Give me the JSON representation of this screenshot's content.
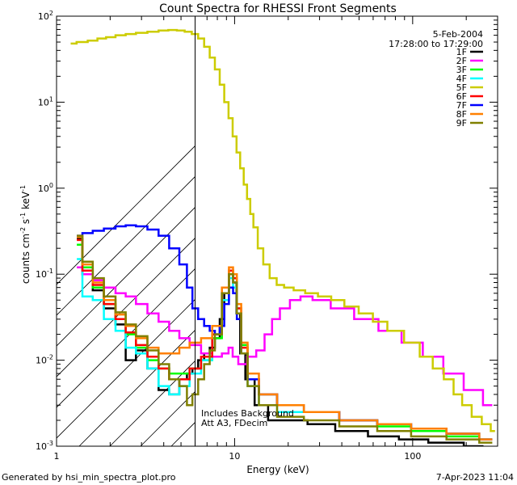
{
  "chart_data": {
    "type": "line",
    "title": "Count Spectra for RHESSI Front Segments",
    "xlabel": "Energy (keV)",
    "ylabel": "counts cm-2 s-1 keV-1",
    "xscale": "log",
    "yscale": "log",
    "xlim": [
      1,
      300
    ],
    "ylim": [
      0.001,
      100
    ],
    "x_ticks": [
      {
        "value": 1,
        "label": "1"
      },
      {
        "value": 10,
        "label": "10"
      },
      {
        "value": 100,
        "label": "100"
      }
    ],
    "y_ticks": [
      {
        "value": 0.001,
        "base": "10",
        "exp": "-3"
      },
      {
        "value": 0.01,
        "base": "10",
        "exp": "-2"
      },
      {
        "value": 0.1,
        "base": "10",
        "exp": "-1"
      },
      {
        "value": 1,
        "base": "10",
        "exp": "0"
      },
      {
        "value": 10,
        "base": "10",
        "exp": "1"
      },
      {
        "value": 100,
        "base": "10",
        "exp": "2"
      }
    ],
    "attenuator_edge_kev": 6,
    "hatched_region_kev": [
      1,
      6
    ],
    "date": "5-Feb-2004",
    "time_range": "17:28:00 to 17:29:00",
    "annotation_lines": [
      "Includes Background",
      "Att A3, FDecim"
    ],
    "series": [
      {
        "name": "1F",
        "color": "#000000",
        "points": [
          [
            1.3,
            0.26
          ],
          [
            1.5,
            0.1
          ],
          [
            1.7,
            0.065
          ],
          [
            2.0,
            0.04
          ],
          [
            2.3,
            0.026
          ],
          [
            2.6,
            0.01
          ],
          [
            3.0,
            0.013
          ],
          [
            3.5,
            0.008
          ],
          [
            4.0,
            0.0045
          ],
          [
            4.6,
            0.004
          ],
          [
            5.2,
            0.006
          ],
          [
            5.6,
            0.007
          ],
          [
            6.0,
            0.008
          ],
          [
            6.5,
            0.01
          ],
          [
            7.0,
            0.012
          ],
          [
            7.5,
            0.014
          ],
          [
            8.0,
            0.018
          ],
          [
            8.5,
            0.03
          ],
          [
            9.0,
            0.06
          ],
          [
            9.6,
            0.1
          ],
          [
            10.0,
            0.08
          ],
          [
            10.5,
            0.035
          ],
          [
            11.0,
            0.012
          ],
          [
            12,
            0.006
          ],
          [
            14,
            0.003
          ],
          [
            17,
            0.002
          ],
          [
            22,
            0.002
          ],
          [
            30,
            0.0018
          ],
          [
            45,
            0.0015
          ],
          [
            70,
            0.0013
          ],
          [
            100,
            0.0012
          ],
          [
            150,
            0.0011
          ],
          [
            250,
            0.001
          ]
        ]
      },
      {
        "name": "2F",
        "color": "#ff00ff",
        "points": [
          [
            1.3,
            0.12
          ],
          [
            1.5,
            0.1
          ],
          [
            1.7,
            0.085
          ],
          [
            2.0,
            0.07
          ],
          [
            2.3,
            0.06
          ],
          [
            2.6,
            0.055
          ],
          [
            3.0,
            0.045
          ],
          [
            3.5,
            0.035
          ],
          [
            4.0,
            0.028
          ],
          [
            4.6,
            0.022
          ],
          [
            5.2,
            0.018
          ],
          [
            6.0,
            0.015
          ],
          [
            7.0,
            0.012
          ],
          [
            8.0,
            0.011
          ],
          [
            9.0,
            0.012
          ],
          [
            9.5,
            0.014
          ],
          [
            10.0,
            0.011
          ],
          [
            11.0,
            0.009
          ],
          [
            12.5,
            0.011
          ],
          [
            14,
            0.013
          ],
          [
            15.5,
            0.02
          ],
          [
            17,
            0.03
          ],
          [
            19,
            0.04
          ],
          [
            22,
            0.05
          ],
          [
            25,
            0.055
          ],
          [
            30,
            0.05
          ],
          [
            40,
            0.04
          ],
          [
            55,
            0.03
          ],
          [
            75,
            0.022
          ],
          [
            100,
            0.016
          ],
          [
            130,
            0.011
          ],
          [
            170,
            0.007
          ],
          [
            220,
            0.0045
          ],
          [
            280,
            0.003
          ]
        ]
      },
      {
        "name": "3F",
        "color": "#00ff00",
        "points": [
          [
            1.3,
            0.22
          ],
          [
            1.5,
            0.12
          ],
          [
            1.7,
            0.07
          ],
          [
            2.0,
            0.045
          ],
          [
            2.3,
            0.03
          ],
          [
            2.6,
            0.02
          ],
          [
            3.0,
            0.014
          ],
          [
            3.5,
            0.01
          ],
          [
            4.0,
            0.008
          ],
          [
            4.6,
            0.007
          ],
          [
            5.2,
            0.007
          ],
          [
            6.0,
            0.008
          ],
          [
            7.0,
            0.01
          ],
          [
            8.0,
            0.018
          ],
          [
            9.0,
            0.06
          ],
          [
            9.6,
            0.11
          ],
          [
            10.0,
            0.09
          ],
          [
            10.6,
            0.04
          ],
          [
            11.2,
            0.015
          ],
          [
            12.5,
            0.006
          ],
          [
            15,
            0.004
          ],
          [
            20,
            0.003
          ],
          [
            30,
            0.0025
          ],
          [
            50,
            0.002
          ],
          [
            80,
            0.0017
          ],
          [
            120,
            0.0015
          ],
          [
            200,
            0.0013
          ],
          [
            280,
            0.0012
          ]
        ]
      },
      {
        "name": "4F",
        "color": "#00ffff",
        "points": [
          [
            1.3,
            0.15
          ],
          [
            1.5,
            0.055
          ],
          [
            1.7,
            0.05
          ],
          [
            2.0,
            0.03
          ],
          [
            2.3,
            0.022
          ],
          [
            2.6,
            0.014
          ],
          [
            3.0,
            0.012
          ],
          [
            3.5,
            0.008
          ],
          [
            4.0,
            0.005
          ],
          [
            4.6,
            0.004
          ],
          [
            5.2,
            0.005
          ],
          [
            6.0,
            0.007
          ],
          [
            7.0,
            0.01
          ],
          [
            8.0,
            0.02
          ],
          [
            9.0,
            0.05
          ],
          [
            9.6,
            0.09
          ],
          [
            10.0,
            0.07
          ],
          [
            10.6,
            0.03
          ],
          [
            11.2,
            0.012
          ],
          [
            12.5,
            0.005
          ],
          [
            15,
            0.003
          ],
          [
            20,
            0.0025
          ],
          [
            30,
            0.0025
          ],
          [
            50,
            0.002
          ],
          [
            80,
            0.0018
          ],
          [
            120,
            0.0016
          ],
          [
            200,
            0.0014
          ],
          [
            280,
            0.0012
          ]
        ]
      },
      {
        "name": "5F",
        "color": "#cccc00",
        "points": [
          [
            1.2,
            48
          ],
          [
            1.4,
            50
          ],
          [
            1.6,
            52
          ],
          [
            1.8,
            55
          ],
          [
            2.0,
            57
          ],
          [
            2.3,
            60
          ],
          [
            2.6,
            62
          ],
          [
            3.0,
            64
          ],
          [
            3.5,
            66
          ],
          [
            4.0,
            68
          ],
          [
            4.5,
            69
          ],
          [
            5.0,
            68
          ],
          [
            5.5,
            66
          ],
          [
            6.0,
            62
          ],
          [
            6.5,
            55
          ],
          [
            7.0,
            44
          ],
          [
            7.5,
            33
          ],
          [
            8.0,
            24
          ],
          [
            8.5,
            16
          ],
          [
            9.0,
            10
          ],
          [
            9.5,
            6.5
          ],
          [
            10.0,
            4
          ],
          [
            10.5,
            2.6
          ],
          [
            11.0,
            1.7
          ],
          [
            11.5,
            1.1
          ],
          [
            12.0,
            0.75
          ],
          [
            12.5,
            0.5
          ],
          [
            13.0,
            0.35
          ],
          [
            14.0,
            0.2
          ],
          [
            15.0,
            0.13
          ],
          [
            16.5,
            0.09
          ],
          [
            18,
            0.075
          ],
          [
            20,
            0.07
          ],
          [
            23,
            0.065
          ],
          [
            27,
            0.06
          ],
          [
            32,
            0.055
          ],
          [
            38,
            0.05
          ],
          [
            45,
            0.042
          ],
          [
            55,
            0.035
          ],
          [
            65,
            0.028
          ],
          [
            80,
            0.022
          ],
          [
            100,
            0.016
          ],
          [
            120,
            0.011
          ],
          [
            140,
            0.008
          ],
          [
            160,
            0.006
          ],
          [
            180,
            0.004
          ],
          [
            200,
            0.003
          ],
          [
            230,
            0.0022
          ],
          [
            260,
            0.0018
          ],
          [
            290,
            0.0015
          ]
        ]
      },
      {
        "name": "6F",
        "color": "#ff0000",
        "points": [
          [
            1.3,
            0.25
          ],
          [
            1.5,
            0.11
          ],
          [
            1.7,
            0.075
          ],
          [
            2.0,
            0.045
          ],
          [
            2.3,
            0.03
          ],
          [
            2.6,
            0.021
          ],
          [
            3.0,
            0.015
          ],
          [
            3.5,
            0.011
          ],
          [
            4.0,
            0.008
          ],
          [
            4.6,
            0.006
          ],
          [
            5.2,
            0.006
          ],
          [
            6.0,
            0.008
          ],
          [
            7.0,
            0.011
          ],
          [
            8.0,
            0.02
          ],
          [
            9.0,
            0.06
          ],
          [
            9.6,
            0.11
          ],
          [
            10.0,
            0.09
          ],
          [
            10.6,
            0.04
          ],
          [
            11.2,
            0.014
          ],
          [
            12.5,
            0.006
          ],
          [
            15,
            0.004
          ],
          [
            20,
            0.003
          ],
          [
            30,
            0.0025
          ],
          [
            50,
            0.002
          ],
          [
            80,
            0.0018
          ],
          [
            120,
            0.0016
          ],
          [
            200,
            0.0014
          ],
          [
            280,
            0.0012
          ]
        ]
      },
      {
        "name": "7F",
        "color": "#0000ff",
        "points": [
          [
            1.3,
            0.28
          ],
          [
            1.5,
            0.3
          ],
          [
            1.7,
            0.32
          ],
          [
            2.0,
            0.34
          ],
          [
            2.3,
            0.36
          ],
          [
            2.6,
            0.37
          ],
          [
            3.0,
            0.36
          ],
          [
            3.5,
            0.33
          ],
          [
            4.0,
            0.28
          ],
          [
            4.6,
            0.2
          ],
          [
            5.2,
            0.13
          ],
          [
            5.6,
            0.07
          ],
          [
            6.0,
            0.04
          ],
          [
            6.5,
            0.03
          ],
          [
            7.0,
            0.025
          ],
          [
            7.5,
            0.022
          ],
          [
            8.0,
            0.02
          ],
          [
            8.5,
            0.025
          ],
          [
            9.0,
            0.045
          ],
          [
            9.6,
            0.07
          ],
          [
            10.0,
            0.06
          ],
          [
            10.6,
            0.03
          ],
          [
            11.2,
            0.012
          ],
          [
            12.5,
            0.006
          ],
          [
            15,
            0.004
          ],
          [
            20,
            0.003
          ],
          [
            30,
            0.0025
          ],
          [
            50,
            0.002
          ],
          [
            80,
            0.0018
          ],
          [
            120,
            0.0016
          ],
          [
            200,
            0.0014
          ],
          [
            280,
            0.0012
          ]
        ]
      },
      {
        "name": "8F",
        "color": "#ff8000",
        "points": [
          [
            1.3,
            0.27
          ],
          [
            1.5,
            0.13
          ],
          [
            1.7,
            0.08
          ],
          [
            2.0,
            0.05
          ],
          [
            2.3,
            0.034
          ],
          [
            2.6,
            0.025
          ],
          [
            3.0,
            0.018
          ],
          [
            3.5,
            0.014
          ],
          [
            4.0,
            0.012
          ],
          [
            4.6,
            0.012
          ],
          [
            5.2,
            0.014
          ],
          [
            6.0,
            0.016
          ],
          [
            7.0,
            0.018
          ],
          [
            8.0,
            0.025
          ],
          [
            9.0,
            0.07
          ],
          [
            9.6,
            0.12
          ],
          [
            10.0,
            0.1
          ],
          [
            10.6,
            0.045
          ],
          [
            11.2,
            0.016
          ],
          [
            12.5,
            0.007
          ],
          [
            15,
            0.004
          ],
          [
            20,
            0.003
          ],
          [
            30,
            0.0025
          ],
          [
            50,
            0.002
          ],
          [
            80,
            0.0018
          ],
          [
            120,
            0.0016
          ],
          [
            200,
            0.0014
          ],
          [
            280,
            0.0012
          ]
        ]
      },
      {
        "name": "9F",
        "color": "#808000",
        "points": [
          [
            1.3,
            0.28
          ],
          [
            1.5,
            0.14
          ],
          [
            1.7,
            0.09
          ],
          [
            2.0,
            0.055
          ],
          [
            2.3,
            0.036
          ],
          [
            2.6,
            0.026
          ],
          [
            3.0,
            0.019
          ],
          [
            3.5,
            0.013
          ],
          [
            4.0,
            0.009
          ],
          [
            4.6,
            0.006
          ],
          [
            5.2,
            0.005
          ],
          [
            5.6,
            0.003
          ],
          [
            6.0,
            0.004
          ],
          [
            6.5,
            0.006
          ],
          [
            7.0,
            0.009
          ],
          [
            7.5,
            0.013
          ],
          [
            8.0,
            0.02
          ],
          [
            9.0,
            0.06
          ],
          [
            9.6,
            0.1
          ],
          [
            10.0,
            0.08
          ],
          [
            10.6,
            0.035
          ],
          [
            11.2,
            0.012
          ],
          [
            12.5,
            0.005
          ],
          [
            15,
            0.003
          ],
          [
            20,
            0.0022
          ],
          [
            30,
            0.002
          ],
          [
            50,
            0.0017
          ],
          [
            80,
            0.0015
          ],
          [
            120,
            0.0013
          ],
          [
            200,
            0.0012
          ],
          [
            280,
            0.0011
          ]
        ]
      }
    ]
  },
  "footer": {
    "generated_by": "Generated by hsi_min_spectra_plot.pro",
    "timestamp": "7-Apr-2023 11:04"
  }
}
